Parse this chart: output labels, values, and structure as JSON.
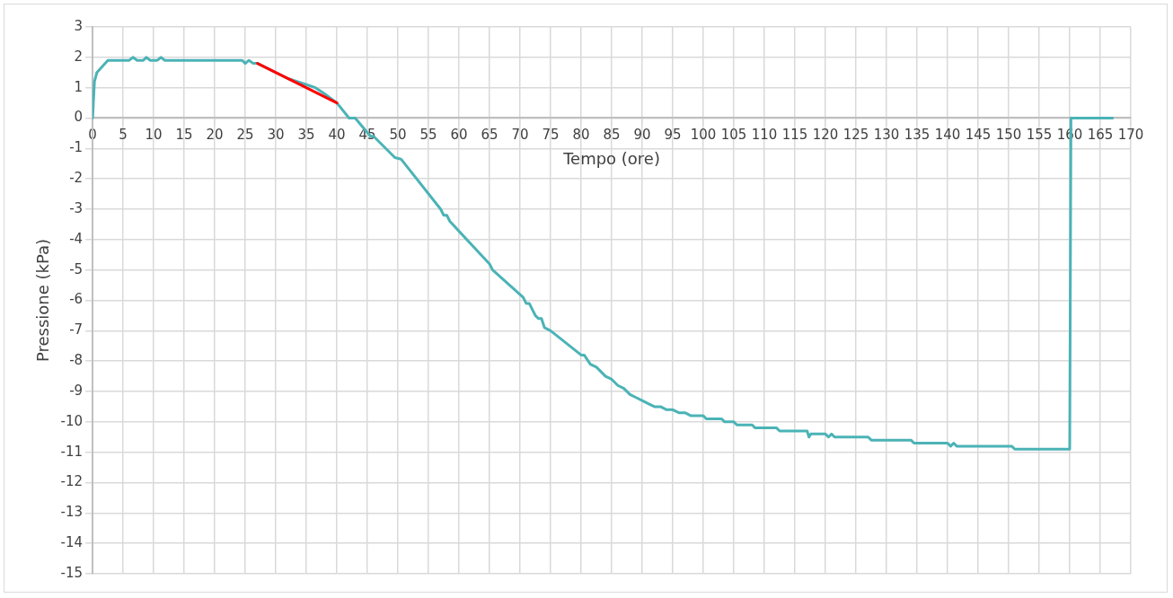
{
  "chart_data": {
    "type": "line",
    "xlabel": "Tempo (ore)",
    "ylabel": "Pressione (kPa)",
    "xlim": [
      0,
      170
    ],
    "xticks": [
      0,
      5,
      10,
      15,
      20,
      25,
      30,
      35,
      40,
      45,
      50,
      55,
      60,
      65,
      70,
      75,
      80,
      85,
      90,
      95,
      100,
      105,
      110,
      115,
      120,
      125,
      130,
      135,
      140,
      145,
      150,
      155,
      160,
      165,
      170
    ],
    "ylim": [
      -15,
      3
    ],
    "yticks": [
      3,
      2,
      1,
      0,
      -1,
      -2,
      -3,
      -4,
      -5,
      -6,
      -7,
      -8,
      -9,
      -10,
      -11,
      -12,
      -13,
      -14,
      -15
    ],
    "grid": true,
    "legend": false,
    "marker": "none",
    "line_style": "solid",
    "series": [
      {
        "color": "#4bb3b6",
        "x": [
          0,
          0.3,
          0.7,
          2.5,
          6,
          6.6,
          7.3,
          8.3,
          8.8,
          9.4,
          10.6,
          11.2,
          11.8,
          24.5,
          25,
          25.6,
          26.3,
          27,
          30,
          32,
          35,
          36.5,
          38,
          40,
          42,
          43,
          45.5,
          46,
          49.5,
          50.5,
          57,
          57.5,
          58,
          58.5,
          65,
          65.5,
          70.5,
          71,
          71.5,
          72.5,
          73,
          73.5,
          74,
          75,
          80,
          80.5,
          81.5,
          82.5,
          84,
          85,
          86,
          87,
          88,
          89,
          90,
          91,
          92,
          93,
          94,
          95,
          96,
          97,
          98,
          100,
          100.5,
          103,
          103.5,
          105,
          105.5,
          108,
          108.5,
          112,
          112.5,
          117,
          117.3,
          117.6,
          120,
          120.5,
          121,
          121.5,
          127,
          127.5,
          134,
          134.5,
          140,
          140.5,
          141,
          141.5,
          150.5,
          151,
          160,
          160.2,
          167
        ],
        "values": [
          0,
          1.2,
          1.5,
          1.9,
          1.9,
          2,
          1.9,
          1.9,
          2,
          1.9,
          1.9,
          2,
          1.9,
          1.9,
          1.8,
          1.9,
          1.8,
          1.8,
          1.5,
          1.3,
          1.1,
          1,
          0.8,
          0.5,
          0,
          0,
          -0.6,
          -0.6,
          -1.3,
          -1.35,
          -3,
          -3.2,
          -3.2,
          -3.4,
          -4.8,
          -5,
          -5.9,
          -6.1,
          -6.1,
          -6.5,
          -6.6,
          -6.6,
          -6.9,
          -7,
          -7.8,
          -7.8,
          -8.1,
          -8.2,
          -8.5,
          -8.6,
          -8.8,
          -8.9,
          -9.1,
          -9.2,
          -9.3,
          -9.4,
          -9.5,
          -9.5,
          -9.6,
          -9.6,
          -9.7,
          -9.7,
          -9.8,
          -9.8,
          -9.9,
          -9.9,
          -10,
          -10,
          -10.1,
          -10.1,
          -10.2,
          -10.2,
          -10.3,
          -10.3,
          -10.5,
          -10.4,
          -10.4,
          -10.5,
          -10.4,
          -10.5,
          -10.5,
          -10.6,
          -10.6,
          -10.7,
          -10.7,
          -10.8,
          -10.7,
          -10.8,
          -10.8,
          -10.9,
          -10.9,
          0,
          0
        ]
      },
      {
        "color": "#ff0000",
        "x": [
          27,
          40
        ],
        "values": [
          1.8,
          0.5
        ]
      }
    ]
  }
}
